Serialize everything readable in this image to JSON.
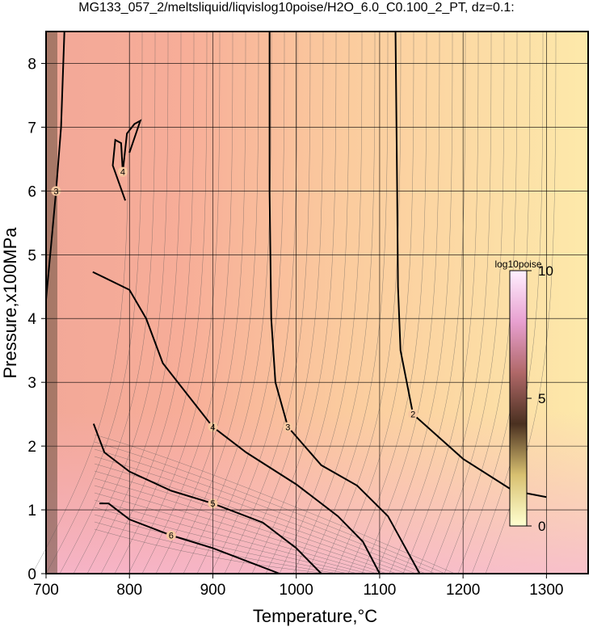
{
  "chart_data": {
    "type": "contour",
    "title": "MG133_057_2/meltsliquid/liqvislog10poise/H2O_6.0_C0.100_2_PT, dz=0.1:",
    "xlabel": "Temperature,°C",
    "ylabel": "Pressure,x100MPa",
    "xlim": [
      700,
      1350
    ],
    "ylim": [
      0,
      8.5
    ],
    "xticks": [
      700,
      800,
      900,
      1000,
      1100,
      1200,
      1300
    ],
    "yticks": [
      0,
      1,
      2,
      3,
      4,
      5,
      6,
      7,
      8
    ],
    "grid": true,
    "colorbar": {
      "label": "log10poise",
      "lim": [
        0,
        10
      ],
      "ticks": [
        0,
        5,
        10
      ]
    },
    "contours": [
      {
        "level": 2,
        "x": [
          1119,
          1121,
          1122,
          1125,
          1140,
          1200,
          1260,
          1300
        ],
        "y": [
          8.5,
          6,
          4.5,
          3.5,
          2.5,
          1.8,
          1.3,
          1.2
        ]
      },
      {
        "level": 3,
        "x": [
          968,
          968,
          970,
          975,
          990,
          1030,
          1073,
          1110,
          1148
        ],
        "y": [
          8.5,
          6,
          4,
          3,
          2.3,
          1.7,
          1.38,
          0.9,
          0
        ]
      },
      {
        "level": 3,
        "x": [
          722,
          718,
          712,
          705,
          700
        ],
        "y": [
          8.5,
          7,
          6,
          5,
          4.3
        ]
      },
      {
        "level": 4,
        "x": [
          756,
          800,
          820,
          840,
          870,
          900,
          940,
          1000,
          1050,
          1080,
          1100
        ],
        "y": [
          4.73,
          4.45,
          4.0,
          3.3,
          2.8,
          2.3,
          1.9,
          1.4,
          0.9,
          0.5,
          0
        ]
      },
      {
        "level": 4,
        "x": [
          795,
          780,
          783,
          790,
          792,
          797,
          806,
          813,
          800
        ],
        "y": [
          5.85,
          6.4,
          6.8,
          6.75,
          6.3,
          6.9,
          7.05,
          7.1,
          6.6
        ]
      },
      {
        "level": 5,
        "x": [
          757,
          770,
          800,
          850,
          900,
          960,
          1000,
          1030
        ],
        "y": [
          2.35,
          1.9,
          1.6,
          1.3,
          1.1,
          0.8,
          0.4,
          0
        ]
      },
      {
        "level": 6,
        "x": [
          764,
          775,
          800,
          850,
          900,
          950,
          980
        ],
        "y": [
          1.1,
          1.1,
          0.85,
          0.6,
          0.4,
          0.15,
          0
        ]
      }
    ]
  }
}
